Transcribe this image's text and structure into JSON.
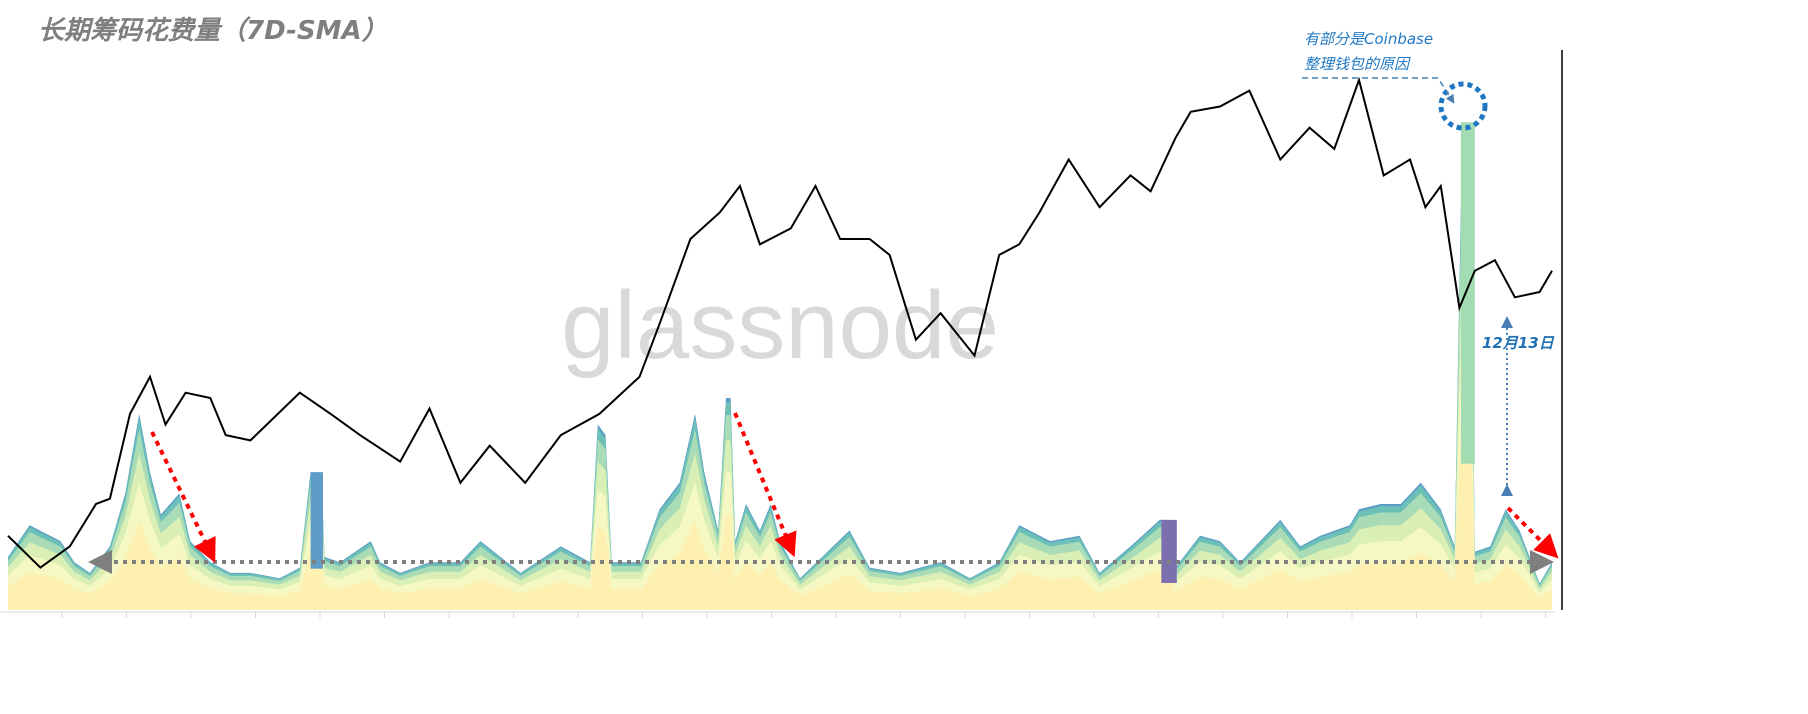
{
  "title": "长期筹码花费量（7D-SMA）",
  "watermark": "glassnode",
  "annotations": {
    "note_line1": "有部分是Coinbase",
    "note_line2": "整理钱包的原因",
    "date_label": "12月13日"
  },
  "colors": {
    "price_line": "#000000",
    "annotation_blue": "#1f77c4",
    "trend_arrow": "#ff0000",
    "baseline_arrow": "#7f7f7f",
    "bands": [
      "#fdf0b0",
      "#f6f8c4",
      "#d9efb6",
      "#a9dcb6",
      "#6cc0b8",
      "#5a9cc6"
    ]
  },
  "chart_data": {
    "type": "area",
    "title": "长期筹码花费量（7D-SMA）",
    "xlabel": "",
    "ylabel": "",
    "grid": false,
    "series": [
      {
        "kind": "line",
        "t": [
          0,
          2.1,
          4,
          5.7,
          6.6,
          7.9,
          9.2,
          10.2,
          11.5,
          13.1,
          14.1,
          15.7,
          18.9,
          20.9,
          22.8,
          25.4,
          27.3,
          29.3,
          31.2,
          33.5,
          35.8,
          38.3,
          40.9,
          42.2,
          44.2,
          46.1,
          47.4,
          48.7,
          50.7,
          52.3,
          53.9,
          55.8,
          57.1,
          58.8,
          60.4,
          62.6,
          64.2,
          65.5,
          66.8,
          68.7,
          70.7,
          72.7,
          74,
          75.6,
          76.6,
          78.5,
          80.4,
          82.4,
          84.3,
          85.9,
          87.5,
          89.1,
          90.8,
          91.8,
          92.8,
          94,
          95,
          96.3,
          97.6,
          99.2,
          100
        ],
        "values": [
          14,
          8,
          12,
          20,
          21,
          37,
          44,
          35,
          41,
          40,
          33,
          32,
          41,
          37,
          33,
          28,
          38,
          24,
          31,
          24,
          33,
          37,
          44,
          54,
          70,
          75,
          80,
          69,
          72,
          80,
          70,
          70,
          67,
          51,
          56,
          48,
          67,
          69,
          75,
          85,
          76,
          82,
          79,
          89,
          94,
          95,
          98,
          85,
          91,
          87,
          100,
          82,
          85,
          76,
          80,
          57,
          64,
          66,
          59,
          60,
          64
        ]
      },
      {
        "kind": "stacked-area",
        "t": [
          0,
          1.4,
          3.4,
          4.3,
          5.3,
          6.6,
          7.6,
          8.5,
          9.2,
          9.9,
          10.5,
          11.1,
          11.8,
          13.1,
          14.4,
          15.7,
          17.6,
          18.9,
          19.6,
          20.3,
          20.5,
          21.5,
          23.5,
          24.1,
          25.4,
          27.3,
          29.3,
          30.6,
          33.2,
          35.8,
          37.7,
          38.2,
          38.7,
          39.1,
          41,
          42.2,
          43.5,
          44.5,
          45.1,
          46,
          46.5,
          46.8,
          47.1,
          47.8,
          48.7,
          49.4,
          50,
          51.3,
          54.5,
          55.8,
          57.8,
          60.4,
          62.3,
          64.2,
          65.5,
          67.5,
          69.4,
          70.7,
          72.7,
          74.6,
          75.3,
          75.6,
          77.2,
          78.5,
          79.8,
          81.1,
          82.4,
          83.7,
          85,
          86.9,
          87.5,
          88.9,
          90.2,
          91.5,
          92.8,
          93.7,
          94.2,
          94.7,
          95,
          96,
          97,
          97.9,
          99.2,
          100
        ],
        "values": [
          10,
          16,
          13,
          9,
          7,
          12,
          22,
          37,
          26,
          18,
          20,
          22,
          13,
          9,
          7,
          7,
          6,
          8,
          26,
          26,
          10,
          9,
          13,
          9,
          7,
          9,
          9,
          13,
          7,
          12,
          9,
          35,
          33,
          9,
          9,
          19,
          24,
          37,
          26,
          15,
          40,
          40,
          13,
          20,
          15,
          20,
          13,
          6,
          15,
          8,
          7,
          9,
          6,
          9,
          16,
          13,
          14,
          7,
          12,
          17,
          17,
          8,
          14,
          13,
          9,
          13,
          17,
          12,
          14,
          16,
          19,
          20,
          20,
          24,
          19,
          12,
          92,
          92,
          11,
          12,
          19,
          15,
          5,
          9
        ],
        "band_shares": [
          0.45,
          0.2,
          0.15,
          0.12,
          0.06,
          0.02
        ]
      }
    ],
    "highlights": [
      {
        "t_start": 19.6,
        "t_end": 20.4,
        "color": "#5f9cc8"
      },
      {
        "t_start": 74.7,
        "t_end": 75.7,
        "color": "#7b6fb0"
      },
      {
        "t_start": 94.1,
        "t_end": 95,
        "color": "#a3dcb2"
      }
    ]
  }
}
